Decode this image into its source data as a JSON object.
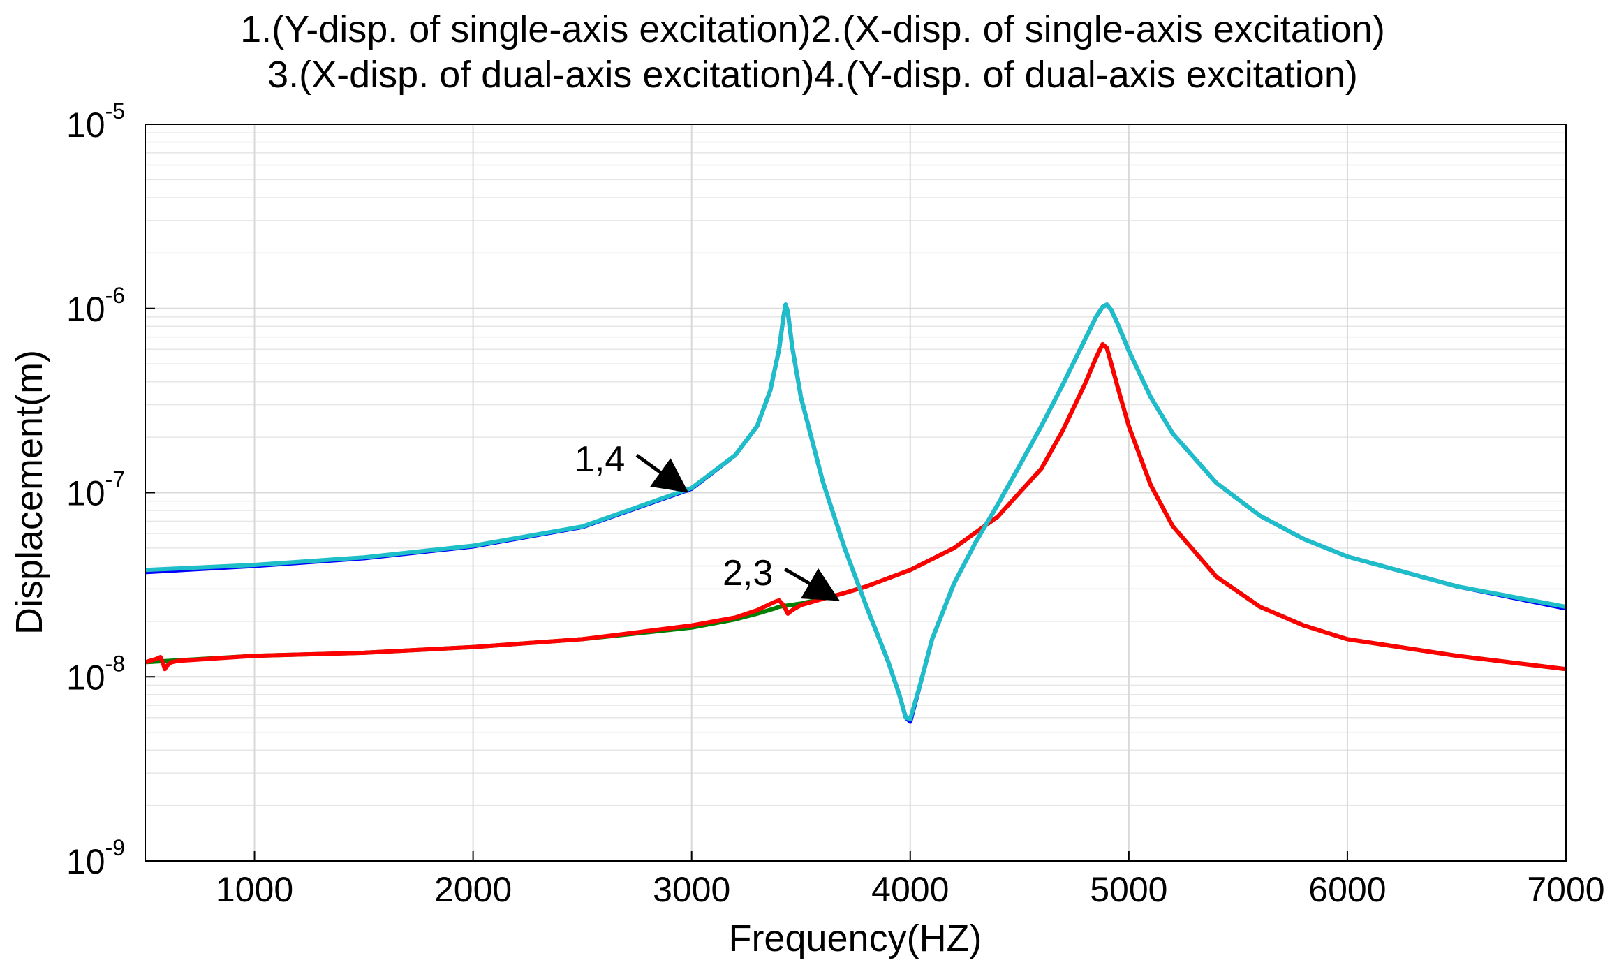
{
  "chart_data": {
    "type": "line",
    "title_lines": [
      "1.(Y-disp. of single-axis excitation)2.(X-disp. of single-axis excitation)",
      "3.(X-disp. of dual-axis excitation)4.(Y-disp. of dual-axis excitation)"
    ],
    "xlabel": "Frequency(HZ)",
    "ylabel": "Displacement(m)",
    "x_scale": "linear",
    "y_scale": "log",
    "xlim": [
      500,
      7000
    ],
    "ylim": [
      1e-09,
      1e-05
    ],
    "grid": true,
    "x_ticks": [
      1000,
      2000,
      3000,
      4000,
      5000,
      6000,
      7000
    ],
    "x_tick_labels": [
      "1000",
      "2000",
      "3000",
      "4000",
      "5000",
      "6000",
      "7000"
    ],
    "y_ticks": [
      {
        "value": 1e-05,
        "base": "10",
        "exponent": "-5"
      },
      {
        "value": 1e-06,
        "base": "10",
        "exponent": "-6"
      },
      {
        "value": 1e-07,
        "base": "10",
        "exponent": "-7"
      },
      {
        "value": 1e-08,
        "base": "10",
        "exponent": "-8"
      },
      {
        "value": 1e-09,
        "base": "10",
        "exponent": "-9"
      }
    ],
    "series": [
      {
        "name": "1.(Y-disp. of single-axis excitation)",
        "color": "#0000ff",
        "x": [
          500,
          1000,
          1500,
          2000,
          2500,
          3000,
          3200,
          3300,
          3360,
          3400,
          3420,
          3430,
          3440,
          3460,
          3500,
          3600,
          3700,
          3800,
          3900,
          3950,
          3980,
          4000,
          4050,
          4100,
          4200,
          4300,
          4400,
          4500,
          4600,
          4700,
          4800,
          4850,
          4880,
          4900,
          4920,
          4950,
          5000,
          5100,
          5200,
          5400,
          5600,
          5800,
          6000,
          6500,
          7000
        ],
        "y": [
          3.7e-08,
          4e-08,
          4.4e-08,
          5.1e-08,
          6.5e-08,
          1.05e-07,
          1.6e-07,
          2.3e-07,
          3.6e-07,
          6e-07,
          9e-07,
          1.05e-06,
          9.6e-07,
          6.2e-07,
          3.3e-07,
          1.15e-07,
          5e-08,
          2.4e-08,
          1.2e-08,
          8e-09,
          6e-09,
          5.7e-09,
          9.5e-09,
          1.6e-08,
          3.2e-08,
          5.4e-08,
          8.6e-08,
          1.4e-07,
          2.3e-07,
          3.9e-07,
          6.8e-07,
          9e-07,
          1.02e-06,
          1.05e-06,
          9.8e-07,
          8.2e-07,
          5.9e-07,
          3.3e-07,
          2.1e-07,
          1.13e-07,
          7.5e-08,
          5.6e-08,
          4.5e-08,
          3.1e-08,
          2.35e-08
        ]
      },
      {
        "name": "2.(X-disp. of single-axis excitation)",
        "color": "#008000",
        "x": [
          500,
          1000,
          1500,
          2000,
          2500,
          3000,
          3200,
          3300,
          3380,
          3400,
          3500,
          3600,
          3700,
          3800,
          4000,
          4200,
          4400,
          4600,
          4700,
          4800,
          4850,
          4880,
          4900,
          4920,
          4950,
          5000,
          5100,
          5200,
          5400,
          5600,
          5800,
          6000,
          6500,
          7000
        ],
        "y": [
          1.2e-08,
          1.3e-08,
          1.35e-08,
          1.45e-08,
          1.6e-08,
          1.85e-08,
          2.05e-08,
          2.2e-08,
          2.35e-08,
          2.4e-08,
          2.5e-08,
          2.65e-08,
          2.85e-08,
          3.1e-08,
          3.8e-08,
          5e-08,
          7.4e-08,
          1.35e-07,
          2.2e-07,
          3.9e-07,
          5.4e-07,
          6.4e-07,
          6.1e-07,
          5e-07,
          3.7e-07,
          2.3e-07,
          1.1e-07,
          6.6e-08,
          3.5e-08,
          2.4e-08,
          1.9e-08,
          1.6e-08,
          1.3e-08,
          1.1e-08
        ]
      },
      {
        "name": "3.(X-disp. of dual-axis excitation)",
        "color": "#ff0000",
        "x": [
          500,
          550,
          570,
          580,
          590,
          600,
          620,
          650,
          700,
          1000,
          1500,
          2000,
          2500,
          3000,
          3200,
          3300,
          3380,
          3400,
          3420,
          3440,
          3460,
          3500,
          3600,
          3700,
          3800,
          4000,
          4200,
          4400,
          4600,
          4700,
          4800,
          4850,
          4880,
          4900,
          4920,
          4950,
          5000,
          5100,
          5200,
          5400,
          5600,
          5800,
          6000,
          6500,
          7000
        ],
        "y": [
          1.2e-08,
          1.25e-08,
          1.28e-08,
          1.2e-08,
          1.1e-08,
          1.15e-08,
          1.2e-08,
          1.22e-08,
          1.23e-08,
          1.3e-08,
          1.35e-08,
          1.45e-08,
          1.6e-08,
          1.9e-08,
          2.1e-08,
          2.3e-08,
          2.55e-08,
          2.6e-08,
          2.45e-08,
          2.2e-08,
          2.3e-08,
          2.45e-08,
          2.65e-08,
          2.85e-08,
          3.1e-08,
          3.8e-08,
          5e-08,
          7.4e-08,
          1.35e-07,
          2.2e-07,
          3.9e-07,
          5.4e-07,
          6.4e-07,
          6.1e-07,
          5e-07,
          3.7e-07,
          2.3e-07,
          1.1e-07,
          6.6e-08,
          3.5e-08,
          2.4e-08,
          1.9e-08,
          1.6e-08,
          1.3e-08,
          1.1e-08
        ]
      },
      {
        "name": "4.(Y-disp. of dual-axis excitation)",
        "color": "#1ebec8",
        "x": [
          500,
          1000,
          1500,
          2000,
          2500,
          3000,
          3200,
          3300,
          3360,
          3400,
          3420,
          3430,
          3440,
          3460,
          3500,
          3600,
          3700,
          3800,
          3900,
          3950,
          3980,
          4000,
          4050,
          4100,
          4200,
          4300,
          4400,
          4500,
          4600,
          4700,
          4800,
          4850,
          4880,
          4900,
          4920,
          4950,
          5000,
          5100,
          5200,
          5400,
          5600,
          5800,
          6000,
          6500,
          7000
        ],
        "y": [
          3.8e-08,
          4.05e-08,
          4.45e-08,
          5.15e-08,
          6.55e-08,
          1.06e-07,
          1.6e-07,
          2.3e-07,
          3.6e-07,
          6e-07,
          9e-07,
          1.05e-06,
          9.6e-07,
          6.2e-07,
          3.3e-07,
          1.15e-07,
          5e-08,
          2.4e-08,
          1.2e-08,
          8e-09,
          6e-09,
          5.9e-09,
          9.5e-09,
          1.6e-08,
          3.2e-08,
          5.4e-08,
          8.6e-08,
          1.4e-07,
          2.3e-07,
          3.9e-07,
          6.8e-07,
          9e-07,
          1.02e-06,
          1.05e-06,
          9.8e-07,
          8.2e-07,
          5.9e-07,
          3.3e-07,
          2.1e-07,
          1.13e-07,
          7.5e-08,
          5.6e-08,
          4.5e-08,
          3.1e-08,
          2.4e-08
        ]
      }
    ],
    "annotations": [
      {
        "text": "1,4",
        "points_to": {
          "x": 2960,
          "y": 1.05e-07
        }
      },
      {
        "text": "2,3",
        "points_to": {
          "x": 3650,
          "y": 2.7e-08
        }
      }
    ]
  }
}
